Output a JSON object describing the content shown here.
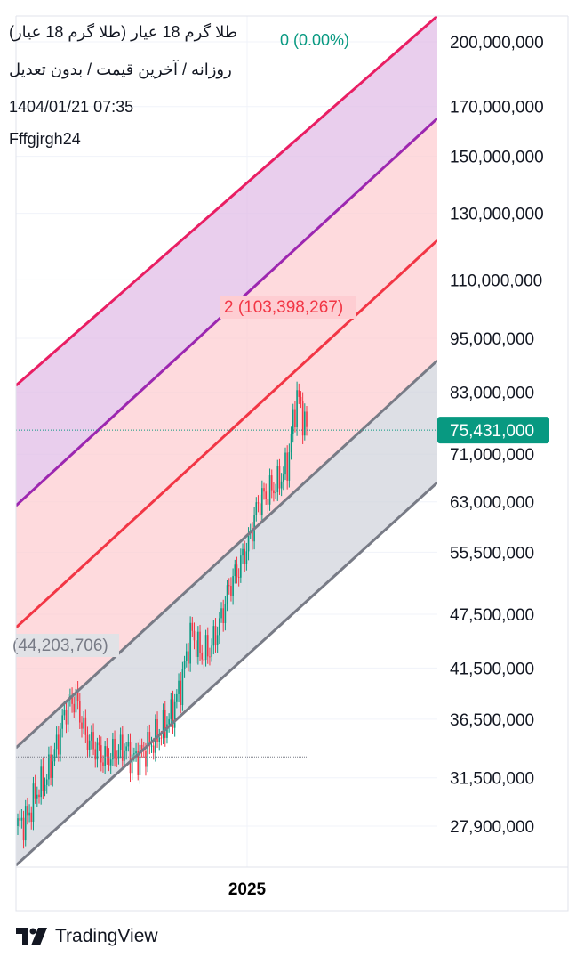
{
  "header": {
    "title": "طلا گرم 18 عیار (طلا گرم 18 عیار)",
    "change": "0 (0.00%)",
    "change_color": "#089981",
    "subtitle": "روزانه / آخرین قیمت / بدون تعدیل",
    "datetime": "1404/01/21 07:35",
    "author": "Fffgjrgh24"
  },
  "footer": {
    "brand": "TradingView",
    "icon": "tradingview-logo-icon"
  },
  "chart_data": {
    "type": "line",
    "scale": "log",
    "x_labels": [
      "2025"
    ],
    "ylim": [
      24300000,
      210000000
    ],
    "y_ticks": [
      200000000,
      170000000,
      150000000,
      130000000,
      110000000,
      95000000,
      83000000,
      71000000,
      63000000,
      55500000,
      47500000,
      41500000,
      36500000,
      31500000,
      27900000
    ],
    "y_tick_labels": [
      "200,000,000",
      "170,000,000",
      "150,000,000",
      "130,000,000",
      "110,000,000",
      "95,000,000",
      "83,000,000",
      "71,000,000",
      "63,000,000",
      "55,500,000",
      "47,500,000",
      "41,500,000",
      "36,500,000",
      "31,500,000",
      "27,900,000"
    ],
    "last_price": 75431000,
    "last_price_label": "75,431,000",
    "last_price_color": "#089981",
    "fib_labels": [
      {
        "text": "2 (103,398,267)",
        "color": "#f23645"
      },
      {
        "text": "(44,203,706)",
        "color": "#787b86"
      }
    ],
    "colors": {
      "top_line": "#e91e63",
      "purple_line": "#9c27b0",
      "red_line": "#f23645",
      "gray_line": "#787b86",
      "purple_fill": "#e1bee7",
      "red_fill": "#fecdd2",
      "gray_fill": "#d1d4dc",
      "up_candle": "#089981",
      "down_candle": "#f23645"
    },
    "series": {
      "close_approx": [
        27900000,
        28500000,
        30500000,
        31500000,
        34000000,
        37500000,
        38500000,
        35000000,
        34000000,
        33000000,
        33500000,
        34000000,
        33000000,
        33500000,
        34500000,
        35500000,
        37000000,
        40000000,
        45500000,
        43000000,
        43500000,
        46500000,
        51000000,
        53500000,
        57000000,
        63000000,
        64500000,
        66000000,
        69000000,
        82500000,
        75431000
      ]
    }
  }
}
